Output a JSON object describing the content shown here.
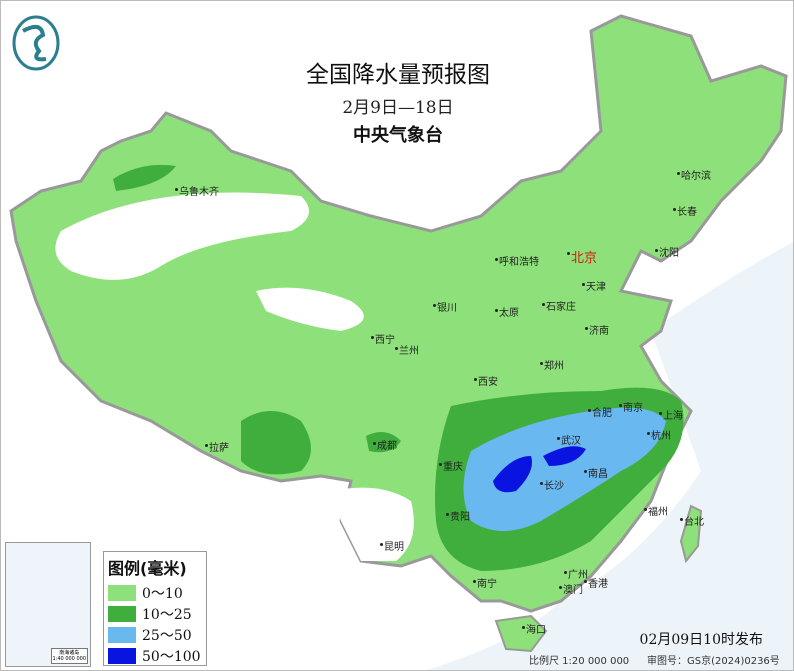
{
  "header": {
    "title": "全国降水量预报图",
    "date_range": "2月9日—18日",
    "agency": "中央气象台",
    "logo": "cma-dragon-logo"
  },
  "legend": {
    "title": "图例(毫米)",
    "items": [
      {
        "label": "0～10",
        "color": "#8ee07a"
      },
      {
        "label": "10～25",
        "color": "#3fae3c"
      },
      {
        "label": "25～50",
        "color": "#6ab8f0"
      },
      {
        "label": "50～100",
        "color": "#0a14e0"
      }
    ]
  },
  "cities": [
    {
      "name": "乌鲁木齐"
    },
    {
      "name": "哈尔滨"
    },
    {
      "name": "长春"
    },
    {
      "name": "沈阳"
    },
    {
      "name": "北京",
      "capital": true
    },
    {
      "name": "天津"
    },
    {
      "name": "呼和浩特"
    },
    {
      "name": "石家庄"
    },
    {
      "name": "太原"
    },
    {
      "name": "济南"
    },
    {
      "name": "银川"
    },
    {
      "name": "西宁"
    },
    {
      "name": "兰州"
    },
    {
      "name": "郑州"
    },
    {
      "name": "西安"
    },
    {
      "name": "合肥"
    },
    {
      "name": "南京"
    },
    {
      "name": "上海"
    },
    {
      "name": "武汉"
    },
    {
      "name": "杭州"
    },
    {
      "name": "拉萨"
    },
    {
      "name": "成都"
    },
    {
      "name": "重庆"
    },
    {
      "name": "长沙"
    },
    {
      "name": "南昌"
    },
    {
      "name": "贵阳"
    },
    {
      "name": "福州"
    },
    {
      "name": "台北"
    },
    {
      "name": "昆明"
    },
    {
      "name": "南宁"
    },
    {
      "name": "广州"
    },
    {
      "name": "澳门"
    },
    {
      "name": "香港"
    },
    {
      "name": "海口"
    }
  ],
  "inset": {
    "scale": "1:40 000 000",
    "label": "南海诸岛"
  },
  "footer": {
    "issued": "02月09日10时发布",
    "scale": "比例尺 1:20 000 000",
    "review_no": "审图号：GS京(2024)0236号"
  }
}
